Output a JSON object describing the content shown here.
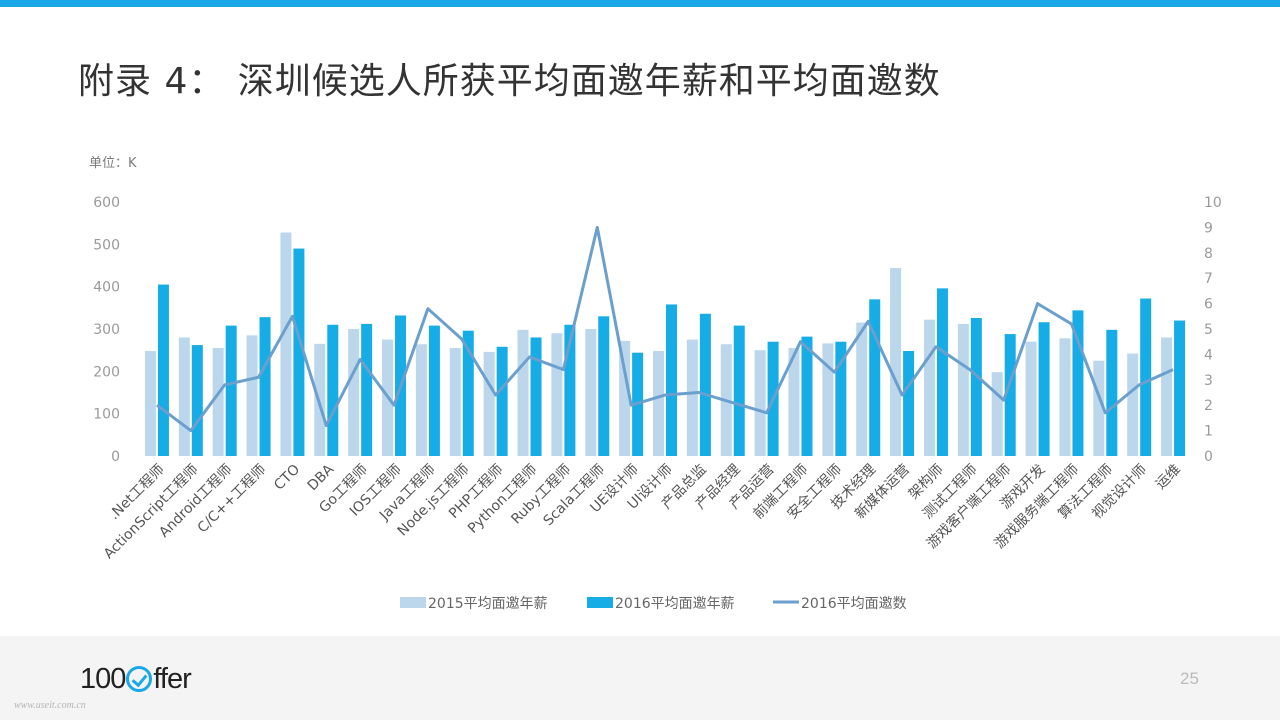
{
  "slide": {
    "title": "附录 4： 深圳候选人所获平均面邀年薪和平均面邀数",
    "page_number": "25",
    "watermark": "www.useit.com.cn",
    "logo": {
      "text_before": "100",
      "text_after": "ffer",
      "icon": "check-circle-icon"
    }
  },
  "colors": {
    "accent": "#1aa8e8",
    "s2015": "#bcd7ec",
    "s2016": "#16ace6",
    "line": "#6b9fcd"
  },
  "chart_data": {
    "type": "bar",
    "unit_label": "单位：K",
    "categories": [
      ".Net工程师",
      "ActionScript工程师",
      "Android工程师",
      "C/C++工程师",
      "CTO",
      "DBA",
      "Go工程师",
      "IOS工程师",
      "Java工程师",
      "Node.js工程师",
      "PHP工程师",
      "Python工程师",
      "Ruby工程师",
      "Scala工程师",
      "UE设计师",
      "UI设计师",
      "产品总监",
      "产品经理",
      "产品运营",
      "前端工程师",
      "安全工程师",
      "技术经理",
      "新媒体运营",
      "架构师",
      "测试工程师",
      "游戏客户端工程师",
      "游戏开发",
      "游戏服务端工程师",
      "算法工程师",
      "视觉设计师",
      "运维"
    ],
    "series": [
      {
        "name": "2015平均面邀年薪",
        "type": "bar",
        "axis": "left",
        "values": [
          248,
          280,
          255,
          285,
          528,
          265,
          300,
          275,
          264,
          255,
          246,
          298,
          290,
          300,
          272,
          248,
          275,
          264,
          250,
          255,
          266,
          315,
          444,
          322,
          312,
          198,
          270,
          278,
          225,
          242,
          280
        ]
      },
      {
        "name": "2016平均面邀年薪",
        "type": "bar",
        "axis": "left",
        "values": [
          405,
          262,
          308,
          328,
          490,
          310,
          312,
          332,
          308,
          296,
          258,
          280,
          310,
          330,
          244,
          358,
          336,
          308,
          270,
          282,
          270,
          370,
          248,
          396,
          326,
          288,
          316,
          344,
          298,
          372,
          320
        ]
      },
      {
        "name": "2016平均面邀数",
        "type": "line",
        "axis": "right",
        "values": [
          2.0,
          1.0,
          2.8,
          3.1,
          5.5,
          1.2,
          3.8,
          2.0,
          5.8,
          4.6,
          2.4,
          3.9,
          3.4,
          9.0,
          2.0,
          2.4,
          2.5,
          2.1,
          1.7,
          4.5,
          3.3,
          5.3,
          2.4,
          4.3,
          3.4,
          2.2,
          6.0,
          5.2,
          1.7,
          2.8,
          3.4
        ]
      }
    ],
    "y_left": {
      "min": 0,
      "max": 600,
      "ticks": [
        0,
        100,
        200,
        300,
        400,
        500,
        600
      ]
    },
    "y_right": {
      "min": 0,
      "max": 10,
      "ticks": [
        0,
        1,
        2,
        3,
        4,
        5,
        6,
        7,
        8,
        9,
        10
      ]
    },
    "grid": false,
    "legend_position": "bottom"
  }
}
